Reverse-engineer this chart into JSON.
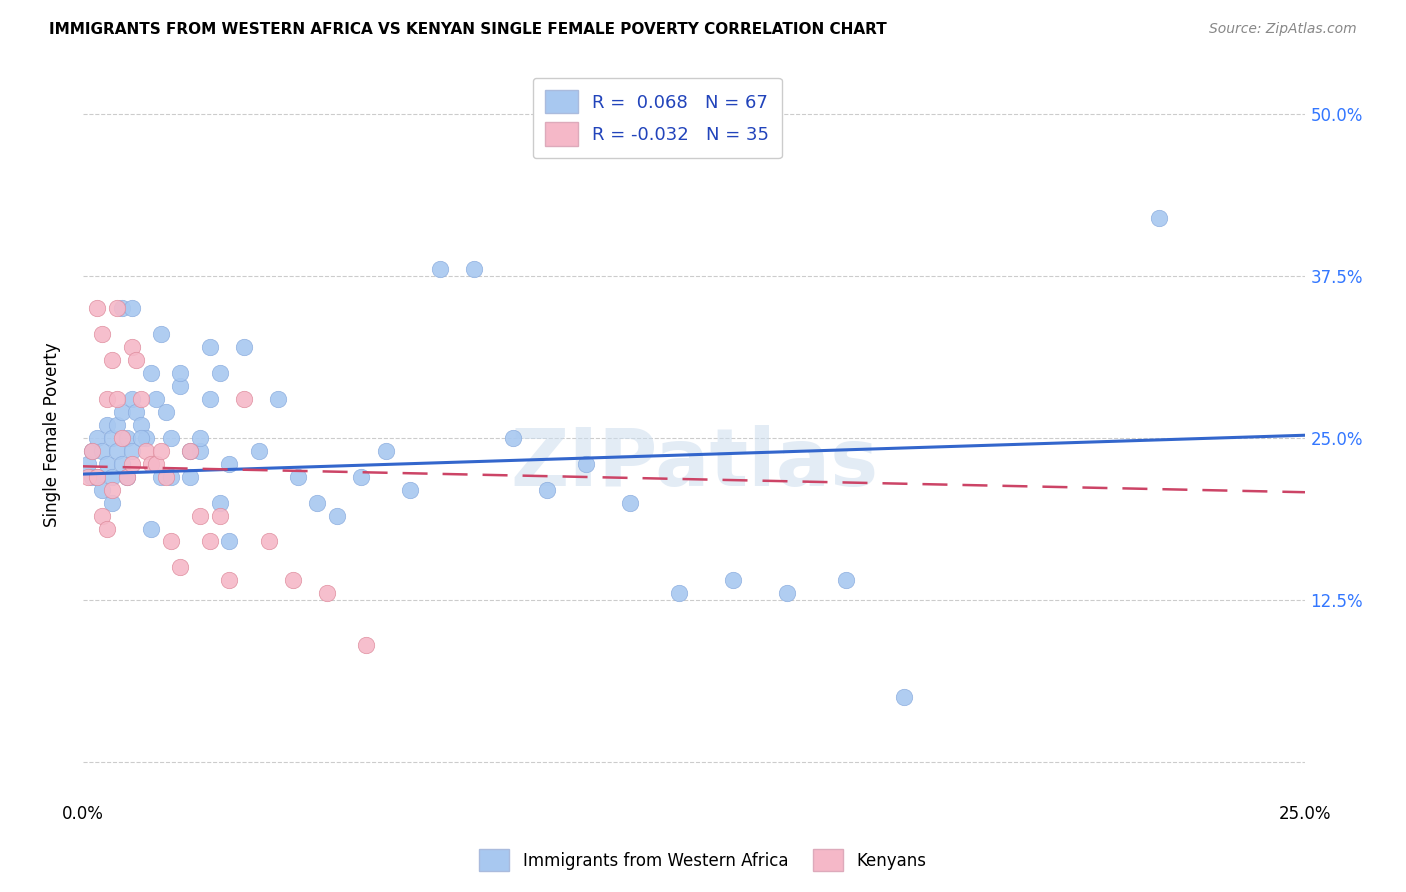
{
  "title": "IMMIGRANTS FROM WESTERN AFRICA VS KENYAN SINGLE FEMALE POVERTY CORRELATION CHART",
  "source": "Source: ZipAtlas.com",
  "ylabel": "Single Female Poverty",
  "ytick_values": [
    0.0,
    0.125,
    0.25,
    0.375,
    0.5
  ],
  "ytick_labels": [
    "",
    "12.5%",
    "25.0%",
    "37.5%",
    "50.0%"
  ],
  "xtick_values": [
    0.0,
    0.05,
    0.1,
    0.15,
    0.2,
    0.25
  ],
  "xtick_labels": [
    "0.0%",
    "",
    "",
    "",
    "",
    "25.0%"
  ],
  "xmin": 0.0,
  "xmax": 0.25,
  "ymin": -0.03,
  "ymax": 0.535,
  "color_blue": "#A8C8F0",
  "color_blue_line": "#3366CC",
  "color_pink": "#F5B8C8",
  "color_pink_line": "#CC4466",
  "watermark": "ZIPatlas",
  "blue_scatter_x": [
    0.001,
    0.002,
    0.002,
    0.003,
    0.003,
    0.004,
    0.004,
    0.005,
    0.005,
    0.006,
    0.006,
    0.007,
    0.007,
    0.008,
    0.008,
    0.009,
    0.009,
    0.01,
    0.01,
    0.011,
    0.012,
    0.013,
    0.014,
    0.015,
    0.016,
    0.017,
    0.018,
    0.02,
    0.022,
    0.024,
    0.026,
    0.028,
    0.03,
    0.033,
    0.036,
    0.04,
    0.044,
    0.048,
    0.052,
    0.057,
    0.062,
    0.067,
    0.073,
    0.08,
    0.088,
    0.095,
    0.103,
    0.112,
    0.122,
    0.133,
    0.144,
    0.156,
    0.168,
    0.006,
    0.008,
    0.01,
    0.012,
    0.014,
    0.016,
    0.018,
    0.02,
    0.022,
    0.024,
    0.026,
    0.028,
    0.03,
    0.22
  ],
  "blue_scatter_y": [
    0.23,
    0.22,
    0.24,
    0.25,
    0.22,
    0.24,
    0.21,
    0.26,
    0.23,
    0.25,
    0.22,
    0.26,
    0.24,
    0.27,
    0.23,
    0.25,
    0.22,
    0.28,
    0.24,
    0.27,
    0.26,
    0.25,
    0.3,
    0.28,
    0.33,
    0.27,
    0.25,
    0.29,
    0.22,
    0.24,
    0.28,
    0.3,
    0.23,
    0.32,
    0.24,
    0.28,
    0.22,
    0.2,
    0.19,
    0.22,
    0.24,
    0.21,
    0.38,
    0.38,
    0.25,
    0.21,
    0.23,
    0.2,
    0.13,
    0.14,
    0.13,
    0.14,
    0.05,
    0.2,
    0.35,
    0.35,
    0.25,
    0.18,
    0.22,
    0.22,
    0.3,
    0.24,
    0.25,
    0.32,
    0.2,
    0.17,
    0.42
  ],
  "pink_scatter_x": [
    0.001,
    0.002,
    0.003,
    0.003,
    0.004,
    0.004,
    0.005,
    0.005,
    0.006,
    0.006,
    0.007,
    0.007,
    0.008,
    0.009,
    0.01,
    0.01,
    0.011,
    0.012,
    0.013,
    0.014,
    0.015,
    0.016,
    0.017,
    0.018,
    0.02,
    0.022,
    0.024,
    0.026,
    0.028,
    0.03,
    0.033,
    0.038,
    0.043,
    0.05,
    0.058
  ],
  "pink_scatter_y": [
    0.22,
    0.24,
    0.22,
    0.35,
    0.33,
    0.19,
    0.28,
    0.18,
    0.31,
    0.21,
    0.28,
    0.35,
    0.25,
    0.22,
    0.32,
    0.23,
    0.31,
    0.28,
    0.24,
    0.23,
    0.23,
    0.24,
    0.22,
    0.17,
    0.15,
    0.24,
    0.19,
    0.17,
    0.19,
    0.14,
    0.28,
    0.17,
    0.14,
    0.13,
    0.09
  ],
  "blue_trendline_x": [
    0.0,
    0.25
  ],
  "blue_trendline_y": [
    0.222,
    0.252
  ],
  "pink_trendline_x": [
    0.0,
    0.25
  ],
  "pink_trendline_y": [
    0.228,
    0.208
  ]
}
